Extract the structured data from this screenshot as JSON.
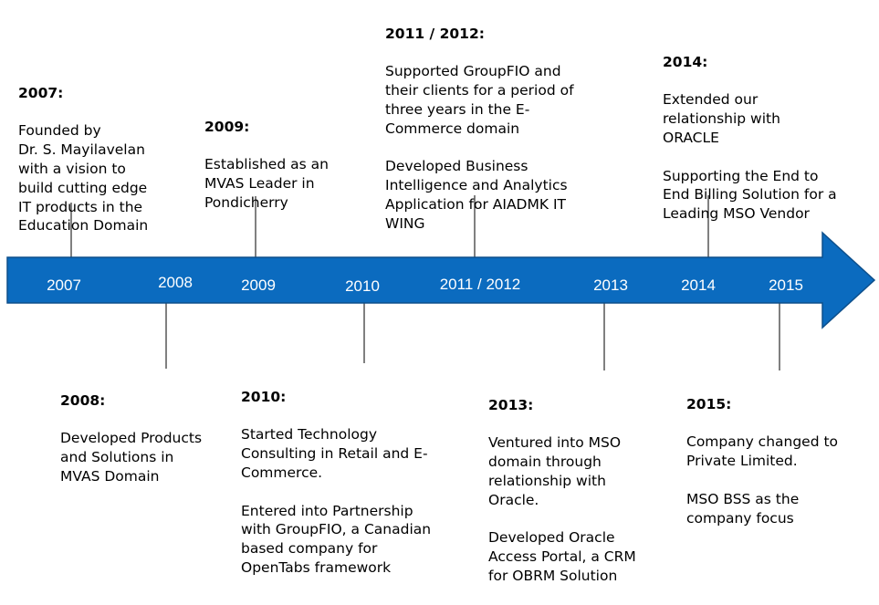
{
  "colors": {
    "arrow_fill": "#0b6bbf",
    "arrow_stroke": "#0d4f8b",
    "connector": "#000000",
    "year_text": "#ffffff"
  },
  "timeline": {
    "years": [
      "2007",
      "2008",
      "2009",
      "2010",
      "2011 / 2012",
      "2013",
      "2014",
      "2015"
    ]
  },
  "events": [
    {
      "title": "2007:",
      "text": "Founded by\nDr. S. Mayilavelan\nwith a vision to\nbuild cutting edge\nIT products in the\nEducation Domain"
    },
    {
      "title": "2008:",
      "text": "Developed Products\nand Solutions in\nMVAS Domain"
    },
    {
      "title": "2009:",
      "text": "Established as an\nMVAS Leader in\nPondicherry"
    },
    {
      "title": "2010:",
      "text": "Started Technology\nConsulting in Retail and E-\nCommerce.\n\nEntered into Partnership\nwith GroupFIO, a Canadian\nbased company for\nOpenTabs framework"
    },
    {
      "title": "2011 / 2012:",
      "text": "Supported  GroupFIO and\ntheir clients for a period of\nthree years in the E-\nCommerce domain\n\nDeveloped Business\nIntelligence and Analytics\nApplication for AIADMK IT\nWING"
    },
    {
      "title": "2013:",
      "text": "Ventured into MSO\ndomain through\nrelationship with\nOracle.\n\nDeveloped Oracle\nAccess Portal, a CRM\nfor OBRM Solution"
    },
    {
      "title": "2014:",
      "text": "Extended our\nrelationship with\nORACLE\n\nSupporting the End to\nEnd Billing Solution for a\nLeading MSO Vendor"
    },
    {
      "title": "2015:",
      "text": "Company changed to\nPrivate Limited.\n\nMSO BSS as the\ncompany focus"
    }
  ]
}
